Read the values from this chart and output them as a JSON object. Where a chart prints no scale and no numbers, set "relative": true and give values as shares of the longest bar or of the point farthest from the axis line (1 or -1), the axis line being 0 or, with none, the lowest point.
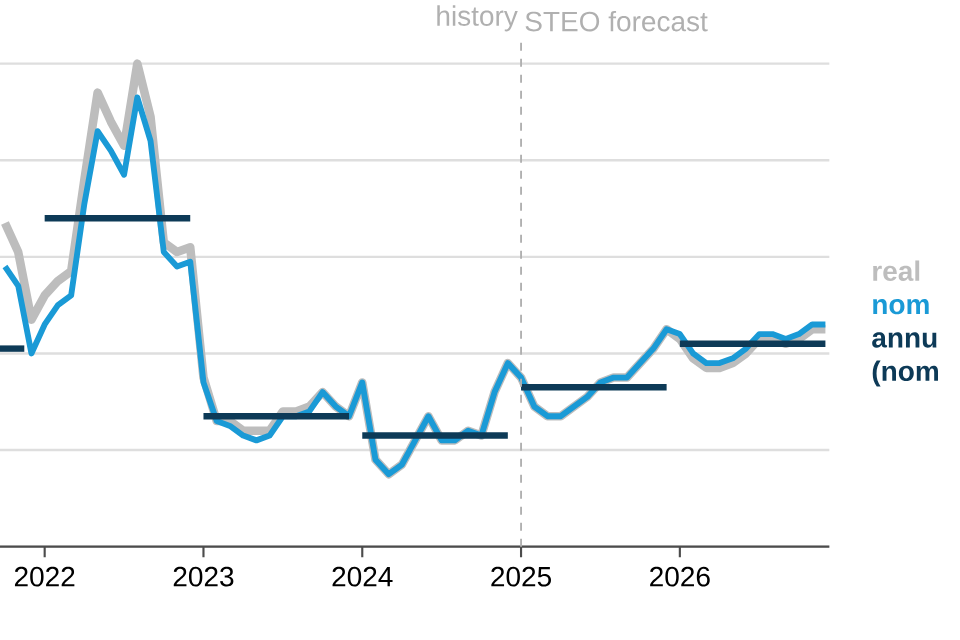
{
  "chart_data": {
    "type": "line",
    "relative": true,
    "grid": "y",
    "legend": "right",
    "line_style": "solid",
    "marker": "none",
    "x": [
      "2021-10",
      "2021-11",
      "2021-12",
      "2022-01",
      "2022-02",
      "2022-03",
      "2022-04",
      "2022-05",
      "2022-06",
      "2022-07",
      "2022-08",
      "2022-09",
      "2022-10",
      "2022-11",
      "2022-12",
      "2023-01",
      "2023-02",
      "2023-03",
      "2023-04",
      "2023-05",
      "2023-06",
      "2023-07",
      "2023-08",
      "2023-09",
      "2023-10",
      "2023-11",
      "2023-12",
      "2024-01",
      "2024-02",
      "2024-03",
      "2024-04",
      "2024-05",
      "2024-06",
      "2024-07",
      "2024-08",
      "2024-09",
      "2024-10",
      "2024-11",
      "2024-12",
      "2025-01",
      "2025-02",
      "2025-03",
      "2025-04",
      "2025-05",
      "2025-06",
      "2025-07",
      "2025-08",
      "2025-09",
      "2025-10",
      "2025-11",
      "2025-12",
      "2026-01",
      "2026-02",
      "2026-03",
      "2026-04",
      "2026-05",
      "2026-06",
      "2026-07",
      "2026-08",
      "2026-09",
      "2026-10",
      "2026-11",
      "2026-12"
    ],
    "xlim": [
      "2021-09-20",
      "2026-12-10"
    ],
    "xticks": [
      {
        "value": "2022",
        "label": "2022"
      },
      {
        "value": "2023",
        "label": "2023"
      },
      {
        "value": "2024",
        "label": "2024"
      },
      {
        "value": "2025",
        "label": "2025"
      },
      {
        "value": "2026",
        "label": "2026"
      }
    ],
    "series": [
      {
        "name": "real",
        "color": "#bdbdbd",
        "values": [
          0.67,
          0.61,
          0.47,
          0.52,
          0.55,
          0.57,
          0.76,
          0.94,
          0.88,
          0.83,
          1.0,
          0.89,
          0.63,
          0.61,
          0.62,
          0.35,
          0.26,
          0.26,
          0.24,
          0.24,
          0.24,
          0.28,
          0.28,
          0.29,
          0.32,
          0.29,
          0.27,
          0.34,
          0.18,
          0.15,
          0.17,
          0.22,
          0.27,
          0.22,
          0.22,
          0.24,
          0.23,
          0.32,
          0.38,
          0.35,
          0.29,
          0.27,
          0.27,
          0.29,
          0.31,
          0.34,
          0.35,
          0.35,
          0.38,
          0.41,
          0.45,
          0.43,
          0.39,
          0.37,
          0.37,
          0.38,
          0.4,
          0.43,
          0.43,
          0.42,
          0.43,
          0.45,
          0.45
        ]
      },
      {
        "name": "nom",
        "color": "#1a9ad6",
        "values": [
          0.58,
          0.54,
          0.4,
          0.46,
          0.5,
          0.52,
          0.71,
          0.86,
          0.82,
          0.77,
          0.93,
          0.84,
          0.61,
          0.58,
          0.59,
          0.34,
          0.26,
          0.25,
          0.23,
          0.22,
          0.23,
          0.27,
          0.27,
          0.28,
          0.32,
          0.29,
          0.27,
          0.34,
          0.18,
          0.15,
          0.17,
          0.22,
          0.27,
          0.22,
          0.22,
          0.24,
          0.23,
          0.32,
          0.38,
          0.35,
          0.29,
          0.27,
          0.27,
          0.29,
          0.31,
          0.34,
          0.35,
          0.35,
          0.38,
          0.41,
          0.45,
          0.44,
          0.4,
          0.38,
          0.38,
          0.39,
          0.41,
          0.44,
          0.44,
          0.43,
          0.44,
          0.46,
          0.46
        ]
      },
      {
        "name": "**annu** (nom",
        "color": "#0d3a57",
        "x": [
          "2022-01",
          "2022-12"
        ],
        "values": [
          0.68,
          0.68
        ]
      },
      {
        "color": "#0d3a57",
        "x": [
          "2021-09-20",
          "2021-11-15"
        ],
        "values": [
          0.41,
          0.41
        ]
      },
      {
        "color": "#0d3a57",
        "x": [
          "2023-01",
          "2023-12"
        ],
        "values": [
          0.27,
          0.27
        ]
      },
      {
        "color": "#0d3a57",
        "x": [
          "2024-01",
          "2024-12"
        ],
        "values": [
          0.23,
          0.23
        ]
      },
      {
        "color": "#0d3a57",
        "x": [
          "2025-01",
          "2025-12"
        ],
        "values": [
          0.33,
          0.33
        ]
      },
      {
        "color": "#0d3a57",
        "x": [
          "2026-01",
          "2026-12"
        ],
        "values": [
          0.42,
          0.42
        ]
      }
    ],
    "ref_lines": [
      {
        "axis": "x",
        "value": "2025",
        "label": "STEO forecast",
        "color": "#b0b0b0",
        "line_style": "dashed"
      }
    ],
    "annotations": [
      "history"
    ]
  }
}
